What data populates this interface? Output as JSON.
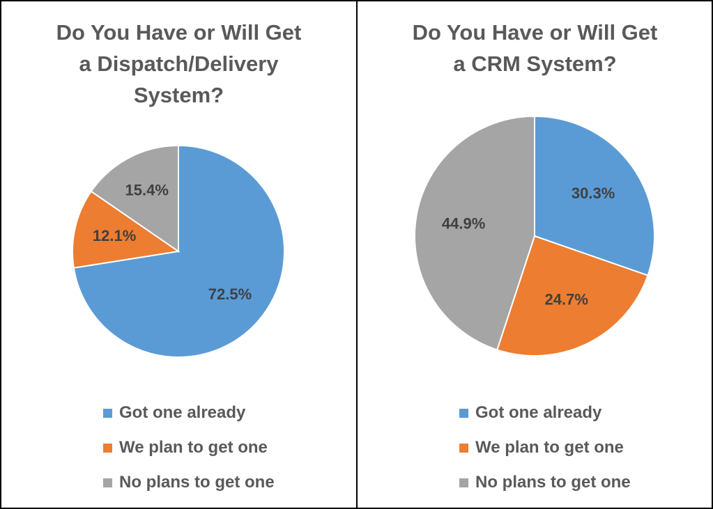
{
  "colors": {
    "got": "#5B9BD5",
    "plan": "#ED7D31",
    "no": "#A5A5A5"
  },
  "chart_data": [
    {
      "type": "pie",
      "title": "Do You Have or Will Get a Dispatch/Delivery System?",
      "title_lines": [
        "Do You Have or Will Get",
        "a Dispatch/Delivery",
        "System?"
      ],
      "categories": [
        "Got one already",
        "We plan to get one",
        "No plans to get one"
      ],
      "values": [
        72.5,
        12.1,
        15.4
      ],
      "labels": [
        "72.5%",
        "12.1%",
        "15.4%"
      ],
      "legend": [
        "Got one already",
        "We plan to get one",
        "No plans to get one"
      ],
      "legend_position": "bottom"
    },
    {
      "type": "pie",
      "title": "Do You Have or Will Get a CRM System?",
      "title_lines": [
        "Do You Have or Will Get",
        "a CRM System?"
      ],
      "categories": [
        "Got one already",
        "We plan to get one",
        "No plans to get one"
      ],
      "values": [
        30.3,
        24.7,
        44.9
      ],
      "labels": [
        "30.3%",
        "24.7%",
        "44.9%"
      ],
      "legend": [
        "Got one already",
        "We plan to get one",
        "No plans to get one"
      ],
      "legend_position": "bottom"
    }
  ]
}
